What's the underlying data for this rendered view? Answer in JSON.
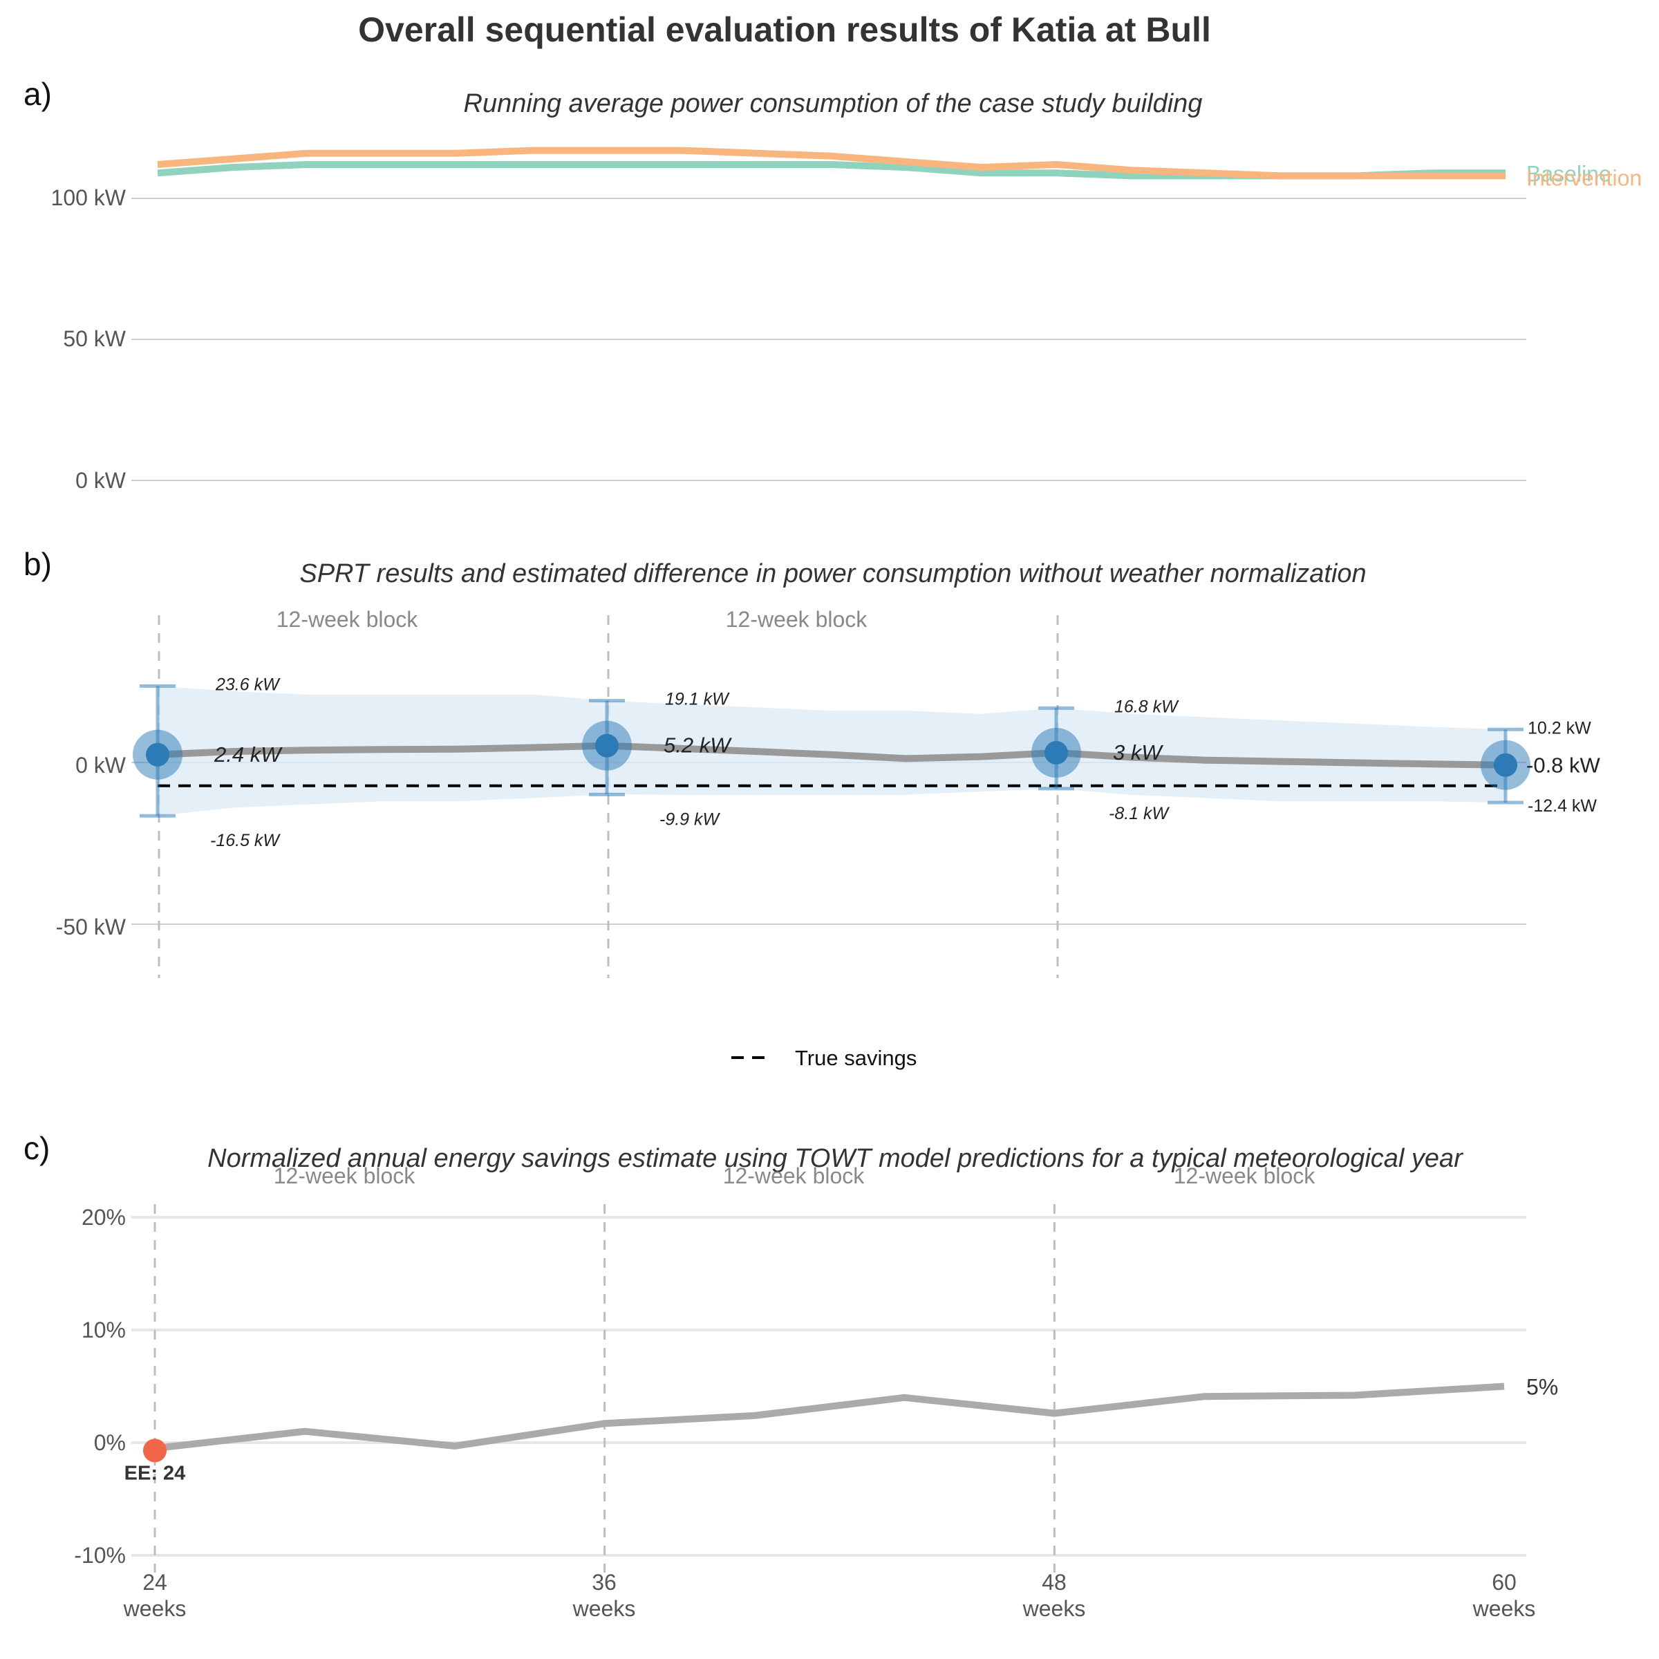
{
  "title": "Overall sequential evaluation results of Katia at Bull",
  "colors": {
    "baseline": "#8fd3be",
    "intervention": "#f8b57e",
    "estimate_line": "#999999",
    "point": "#2c7bb6",
    "ribbon": "#dbe9f6",
    "true_savings": "#000000",
    "savings_line": "#aaaaaa",
    "early_end": "#f26548"
  },
  "panel_a": {
    "tag": "a)",
    "subtitle": "Running average power consumption of the case study building",
    "y_ticks": [
      "100 kW",
      "50 kW",
      "0 kW"
    ]
  },
  "panel_b": {
    "tag": "b)",
    "subtitle": "SPRT results and estimated difference in power consumption without weather normalization",
    "y_ticks": [
      "0 kW",
      "-50 kW"
    ],
    "block_labels": [
      "12-week block",
      "12-week block"
    ],
    "legend_label": "True savings"
  },
  "panel_c": {
    "tag": "c)",
    "subtitle": "Normalized annual energy savings estimate using TOWT model predictions for a typical meteorological year",
    "y_ticks": [
      "20%",
      "10%",
      "0%",
      "-10%"
    ],
    "block_labels": [
      "12-week block",
      "12-week block",
      "12-week block"
    ],
    "early_end_label": "EE: 24",
    "end_label": "5%",
    "x_ticks": [
      {
        "value": "24",
        "unit": "weeks"
      },
      {
        "value": "36",
        "unit": "weeks"
      },
      {
        "value": "48",
        "unit": "weeks"
      },
      {
        "value": "60",
        "unit": "weeks"
      }
    ]
  },
  "chart_data": [
    {
      "type": "line",
      "title": "Running average power consumption of the case study building",
      "x_unit": "weeks",
      "x": [
        24,
        26,
        28,
        30,
        32,
        34,
        36,
        38,
        40,
        42,
        44,
        46,
        48,
        50,
        52,
        54,
        56,
        58,
        60
      ],
      "ylim": [
        0,
        120
      ],
      "y_unit": "kW",
      "series": [
        {
          "name": "Baseline",
          "values": [
            109,
            111,
            112,
            112,
            112,
            112,
            112,
            112,
            112,
            112,
            111,
            109,
            109,
            108,
            108,
            108,
            108,
            109,
            109
          ]
        },
        {
          "name": "Intervention",
          "values": [
            112,
            114,
            116,
            116,
            116,
            117,
            117,
            117,
            116,
            115,
            113,
            111,
            112,
            110,
            109,
            108,
            108,
            108,
            108
          ]
        }
      ]
    },
    {
      "type": "line",
      "title": "SPRT results and estimated difference in power consumption without weather normalization",
      "x_unit": "weeks",
      "ylim": [
        -70,
        45
      ],
      "y_unit": "kW",
      "estimate": {
        "x": [
          24,
          26,
          28,
          30,
          32,
          34,
          36,
          38,
          40,
          42,
          44,
          46,
          48,
          50,
          52,
          54,
          56,
          58,
          60
        ],
        "values": [
          2.4,
          3.4,
          3.8,
          4.0,
          4.1,
          4.6,
          5.2,
          4.3,
          3.4,
          2.4,
          1.2,
          1.8,
          3.0,
          1.6,
          0.7,
          0.3,
          -0.1,
          -0.5,
          -0.8
        ],
        "ci_upper": [
          23.6,
          22,
          21,
          21,
          21,
          21,
          19.1,
          18,
          17,
          16,
          16,
          15,
          16.8,
          15,
          14,
          13,
          12,
          11,
          10.2
        ],
        "ci_lower": [
          -16.5,
          -14,
          -13,
          -12,
          -12,
          -11,
          -9.9,
          -10,
          -10,
          -10,
          -10,
          -9,
          -8.1,
          -10,
          -11,
          -12,
          -12,
          -12,
          -12.4
        ]
      },
      "sprt_points": [
        {
          "x": 24,
          "value": 2.4,
          "upper": 23.6,
          "lower": -16.5,
          "label": "2.4 kW",
          "upper_label": "23.6 kW",
          "lower_label": "-16.5 kW"
        },
        {
          "x": 36,
          "value": 5.2,
          "upper": 19.1,
          "lower": -9.9,
          "label": "5.2 kW",
          "upper_label": "19.1 kW",
          "lower_label": "-9.9 kW"
        },
        {
          "x": 48,
          "value": 3,
          "upper": 16.8,
          "lower": -8.1,
          "label": "3 kW",
          "upper_label": "16.8 kW",
          "lower_label": "-8.1 kW"
        },
        {
          "x": 60,
          "value": -0.8,
          "upper": 10.2,
          "lower": -12.4,
          "label": "-0.8 kW",
          "upper_label": "10.2 kW",
          "lower_label": "-12.4 kW"
        }
      ],
      "true_savings": {
        "name": "True savings",
        "values_x": [
          24,
          60
        ],
        "values": [
          -7.2,
          -7.2
        ]
      },
      "block_boundaries": [
        24,
        36,
        48
      ]
    },
    {
      "type": "line",
      "title": "Normalized annual energy savings estimate using TOWT model predictions for a typical meteorological year",
      "x_unit": "weeks",
      "x": [
        24,
        28,
        32,
        36,
        40,
        44,
        48,
        52,
        56,
        60
      ],
      "values": [
        -0.5,
        1.0,
        -0.3,
        1.7,
        2.4,
        4.0,
        2.6,
        4.1,
        4.2,
        5.0
      ],
      "ylim": [
        -10,
        20
      ],
      "y_unit": "%",
      "early_end": {
        "x": 24,
        "value": -0.7,
        "label": "EE: 24"
      },
      "block_boundaries": [
        24,
        36,
        48
      ]
    }
  ]
}
